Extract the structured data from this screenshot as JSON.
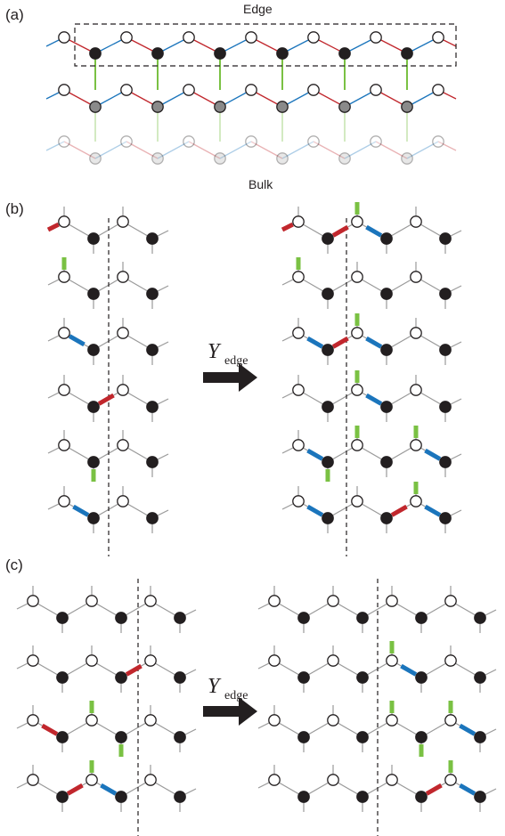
{
  "panels": {
    "a": {
      "label": "(a)",
      "edge_label": "Edge",
      "bulk_label": "Bulk"
    },
    "b": {
      "label": "(b)",
      "operator": "Y",
      "operator_sub": "edge"
    },
    "c": {
      "label": "(c)",
      "operator": "Y",
      "operator_sub": "edge"
    }
  },
  "colors": {
    "red": "#c1272d",
    "blue": "#1b75bc",
    "green": "#7ac143",
    "gray": "#9a9a9a",
    "black": "#231f20"
  }
}
